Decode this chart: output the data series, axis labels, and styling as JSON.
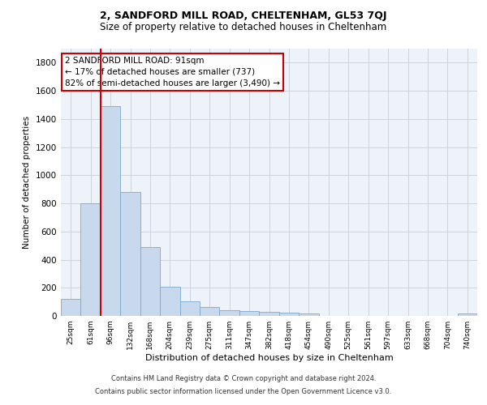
{
  "title1": "2, SANDFORD MILL ROAD, CHELTENHAM, GL53 7QJ",
  "title2": "Size of property relative to detached houses in Cheltenham",
  "xlabel": "Distribution of detached houses by size in Cheltenham",
  "ylabel": "Number of detached properties",
  "categories": [
    "25sqm",
    "61sqm",
    "96sqm",
    "132sqm",
    "168sqm",
    "204sqm",
    "239sqm",
    "275sqm",
    "311sqm",
    "347sqm",
    "382sqm",
    "418sqm",
    "454sqm",
    "490sqm",
    "525sqm",
    "561sqm",
    "597sqm",
    "633sqm",
    "668sqm",
    "704sqm",
    "740sqm"
  ],
  "values": [
    120,
    800,
    1490,
    880,
    490,
    205,
    105,
    65,
    40,
    35,
    30,
    22,
    15,
    0,
    0,
    0,
    0,
    0,
    0,
    0,
    15
  ],
  "bar_color": "#c9d9ed",
  "bar_edge_color": "#7aaac8",
  "vline_color": "#cc0000",
  "annotation_text": "2 SANDFORD MILL ROAD: 91sqm\n← 17% of detached houses are smaller (737)\n82% of semi-detached houses are larger (3,490) →",
  "annotation_box_color": "#ffffff",
  "annotation_box_edge": "#cc0000",
  "ylim": [
    0,
    1900
  ],
  "yticks": [
    0,
    200,
    400,
    600,
    800,
    1000,
    1200,
    1400,
    1600,
    1800
  ],
  "footer1": "Contains HM Land Registry data © Crown copyright and database right 2024.",
  "footer2": "Contains public sector information licensed under the Open Government Licence v3.0.",
  "plot_bg_color": "#eef2f9",
  "grid_color": "#c8cdd8"
}
